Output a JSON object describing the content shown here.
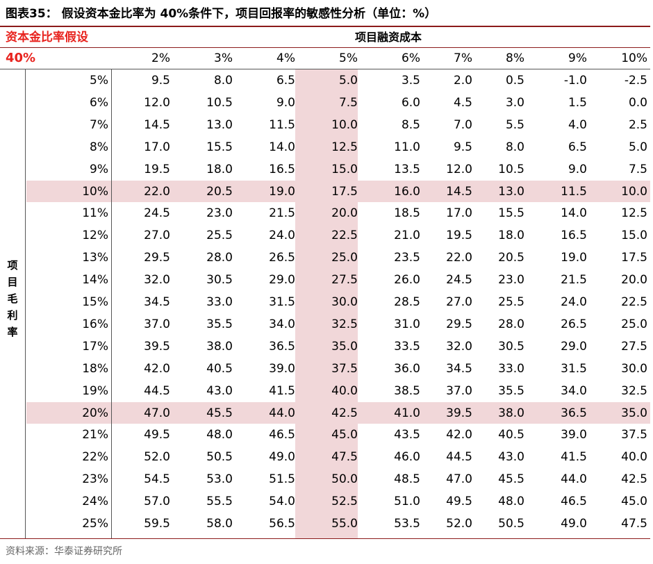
{
  "title": "图表35：  假设资本金比率为 40%条件下，项目回报率的敏感性分析（单位：%）",
  "assumption_label": "资本金比率假设",
  "ratio_value": "40%",
  "column_group_label": "项目融资成本",
  "row_group_label": [
    "项",
    "目",
    "毛",
    "利",
    "率"
  ],
  "columns": [
    "2%",
    "3%",
    "4%",
    "5%",
    "6%",
    "7%",
    "8%",
    "9%",
    "10%"
  ],
  "rows": [
    {
      "label": "5%",
      "values": [
        "9.5",
        "8.0",
        "6.5",
        "5.0",
        "3.5",
        "2.0",
        "0.5",
        "-1.0",
        "-2.5"
      ]
    },
    {
      "label": "6%",
      "values": [
        "12.0",
        "10.5",
        "9.0",
        "7.5",
        "6.0",
        "4.5",
        "3.0",
        "1.5",
        "0.0"
      ]
    },
    {
      "label": "7%",
      "values": [
        "14.5",
        "13.0",
        "11.5",
        "10.0",
        "8.5",
        "7.0",
        "5.5",
        "4.0",
        "2.5"
      ]
    },
    {
      "label": "8%",
      "values": [
        "17.0",
        "15.5",
        "14.0",
        "12.5",
        "11.0",
        "9.5",
        "8.0",
        "6.5",
        "5.0"
      ]
    },
    {
      "label": "9%",
      "values": [
        "19.5",
        "18.0",
        "16.5",
        "15.0",
        "13.5",
        "12.0",
        "10.5",
        "9.0",
        "7.5"
      ]
    },
    {
      "label": "10%",
      "values": [
        "22.0",
        "20.5",
        "19.0",
        "17.5",
        "16.0",
        "14.5",
        "13.0",
        "11.5",
        "10.0"
      ]
    },
    {
      "label": "11%",
      "values": [
        "24.5",
        "23.0",
        "21.5",
        "20.0",
        "18.5",
        "17.0",
        "15.5",
        "14.0",
        "12.5"
      ]
    },
    {
      "label": "12%",
      "values": [
        "27.0",
        "25.5",
        "24.0",
        "22.5",
        "21.0",
        "19.5",
        "18.0",
        "16.5",
        "15.0"
      ]
    },
    {
      "label": "13%",
      "values": [
        "29.5",
        "28.0",
        "26.5",
        "25.0",
        "23.5",
        "22.0",
        "20.5",
        "19.0",
        "17.5"
      ]
    },
    {
      "label": "14%",
      "values": [
        "32.0",
        "30.5",
        "29.0",
        "27.5",
        "26.0",
        "24.5",
        "23.0",
        "21.5",
        "20.0"
      ]
    },
    {
      "label": "15%",
      "values": [
        "34.5",
        "33.0",
        "31.5",
        "30.0",
        "28.5",
        "27.0",
        "25.5",
        "24.0",
        "22.5"
      ]
    },
    {
      "label": "16%",
      "values": [
        "37.0",
        "35.5",
        "34.0",
        "32.5",
        "31.0",
        "29.5",
        "28.0",
        "26.5",
        "25.0"
      ]
    },
    {
      "label": "17%",
      "values": [
        "39.5",
        "38.0",
        "36.5",
        "35.0",
        "33.5",
        "32.0",
        "30.5",
        "29.0",
        "27.5"
      ]
    },
    {
      "label": "18%",
      "values": [
        "42.0",
        "40.5",
        "39.0",
        "37.5",
        "36.0",
        "34.5",
        "33.0",
        "31.5",
        "30.0"
      ]
    },
    {
      "label": "19%",
      "values": [
        "44.5",
        "43.0",
        "41.5",
        "40.0",
        "38.5",
        "37.0",
        "35.5",
        "34.0",
        "32.5"
      ]
    },
    {
      "label": "20%",
      "values": [
        "47.0",
        "45.5",
        "44.0",
        "42.5",
        "41.0",
        "39.5",
        "38.0",
        "36.5",
        "35.0"
      ]
    },
    {
      "label": "21%",
      "values": [
        "49.5",
        "48.0",
        "46.5",
        "45.0",
        "43.5",
        "42.0",
        "40.5",
        "39.0",
        "37.5"
      ]
    },
    {
      "label": "22%",
      "values": [
        "52.0",
        "50.5",
        "49.0",
        "47.5",
        "46.0",
        "44.5",
        "43.0",
        "41.5",
        "40.0"
      ]
    },
    {
      "label": "23%",
      "values": [
        "54.5",
        "53.0",
        "51.5",
        "50.0",
        "48.5",
        "47.0",
        "45.5",
        "44.0",
        "42.5"
      ]
    },
    {
      "label": "24%",
      "values": [
        "57.0",
        "55.5",
        "54.0",
        "52.5",
        "51.0",
        "49.5",
        "48.0",
        "46.5",
        "45.0"
      ]
    },
    {
      "label": "25%",
      "values": [
        "59.5",
        "58.0",
        "56.5",
        "55.0",
        "53.5",
        "52.0",
        "50.5",
        "49.0",
        "47.5"
      ]
    }
  ],
  "highlight": {
    "column": "5%",
    "rows": [
      "10%",
      "20%"
    ],
    "color": "#f1d7d9"
  },
  "accent_color": "#e8231e",
  "source": "资料来源：华泰证券研究所"
}
